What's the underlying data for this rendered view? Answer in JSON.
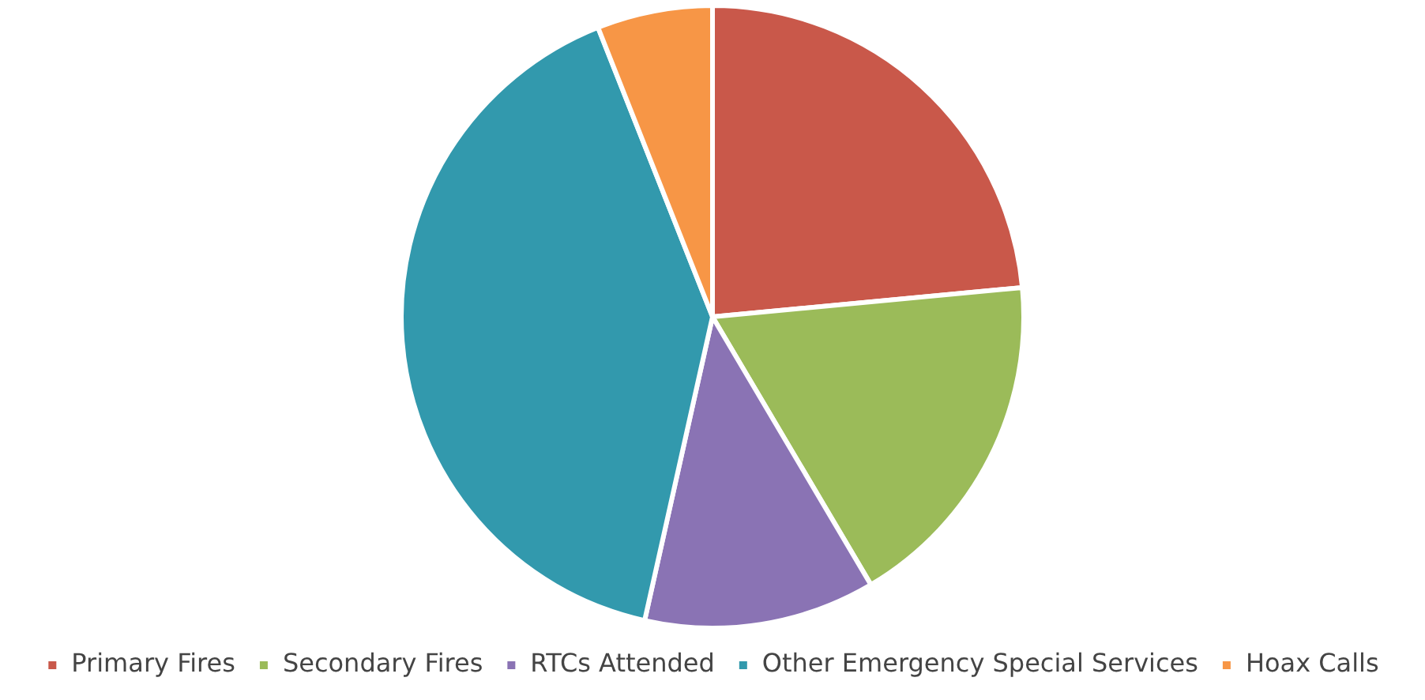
{
  "chart_data": {
    "type": "pie",
    "categories": [
      "Primary Fires",
      "Secondary Fires",
      "RTCs Attended",
      "Other Emergency Special Services",
      "Hoax Calls"
    ],
    "values": [
      23.5,
      18,
      12,
      40.5,
      6
    ],
    "colors": [
      "#c9584a",
      "#9bbb59",
      "#8a73b4",
      "#3299ad",
      "#f79646"
    ],
    "legend": "bottom"
  }
}
